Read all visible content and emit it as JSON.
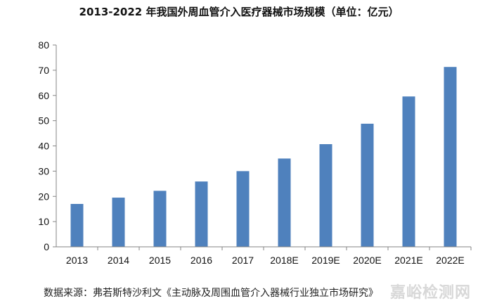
{
  "chart_data": {
    "type": "bar",
    "title": "2013-2022 年我国外周血管介入医疗器械市场规模（单位：亿元）",
    "categories": [
      "2013",
      "2014",
      "2015",
      "2016",
      "2017",
      "2018E",
      "2019E",
      "2020E",
      "2021E",
      "2022E"
    ],
    "series": [
      {
        "values": [
          17.0,
          19.5,
          22.2,
          25.9,
          30.0,
          35.0,
          40.7,
          48.8,
          59.6,
          71.3
        ]
      }
    ],
    "ylim": [
      0,
      80
    ],
    "yticks": [
      0,
      10,
      20,
      30,
      40,
      50,
      60,
      70,
      80
    ],
    "xlabel": "",
    "ylabel": "",
    "grid": false,
    "bar_color": "#4F81BD"
  },
  "footer": {
    "source": "数据来源：弗若斯特沙利文《主动脉及周围血管介入器械行业独立市场研究》",
    "watermark": "嘉峪检测网"
  }
}
